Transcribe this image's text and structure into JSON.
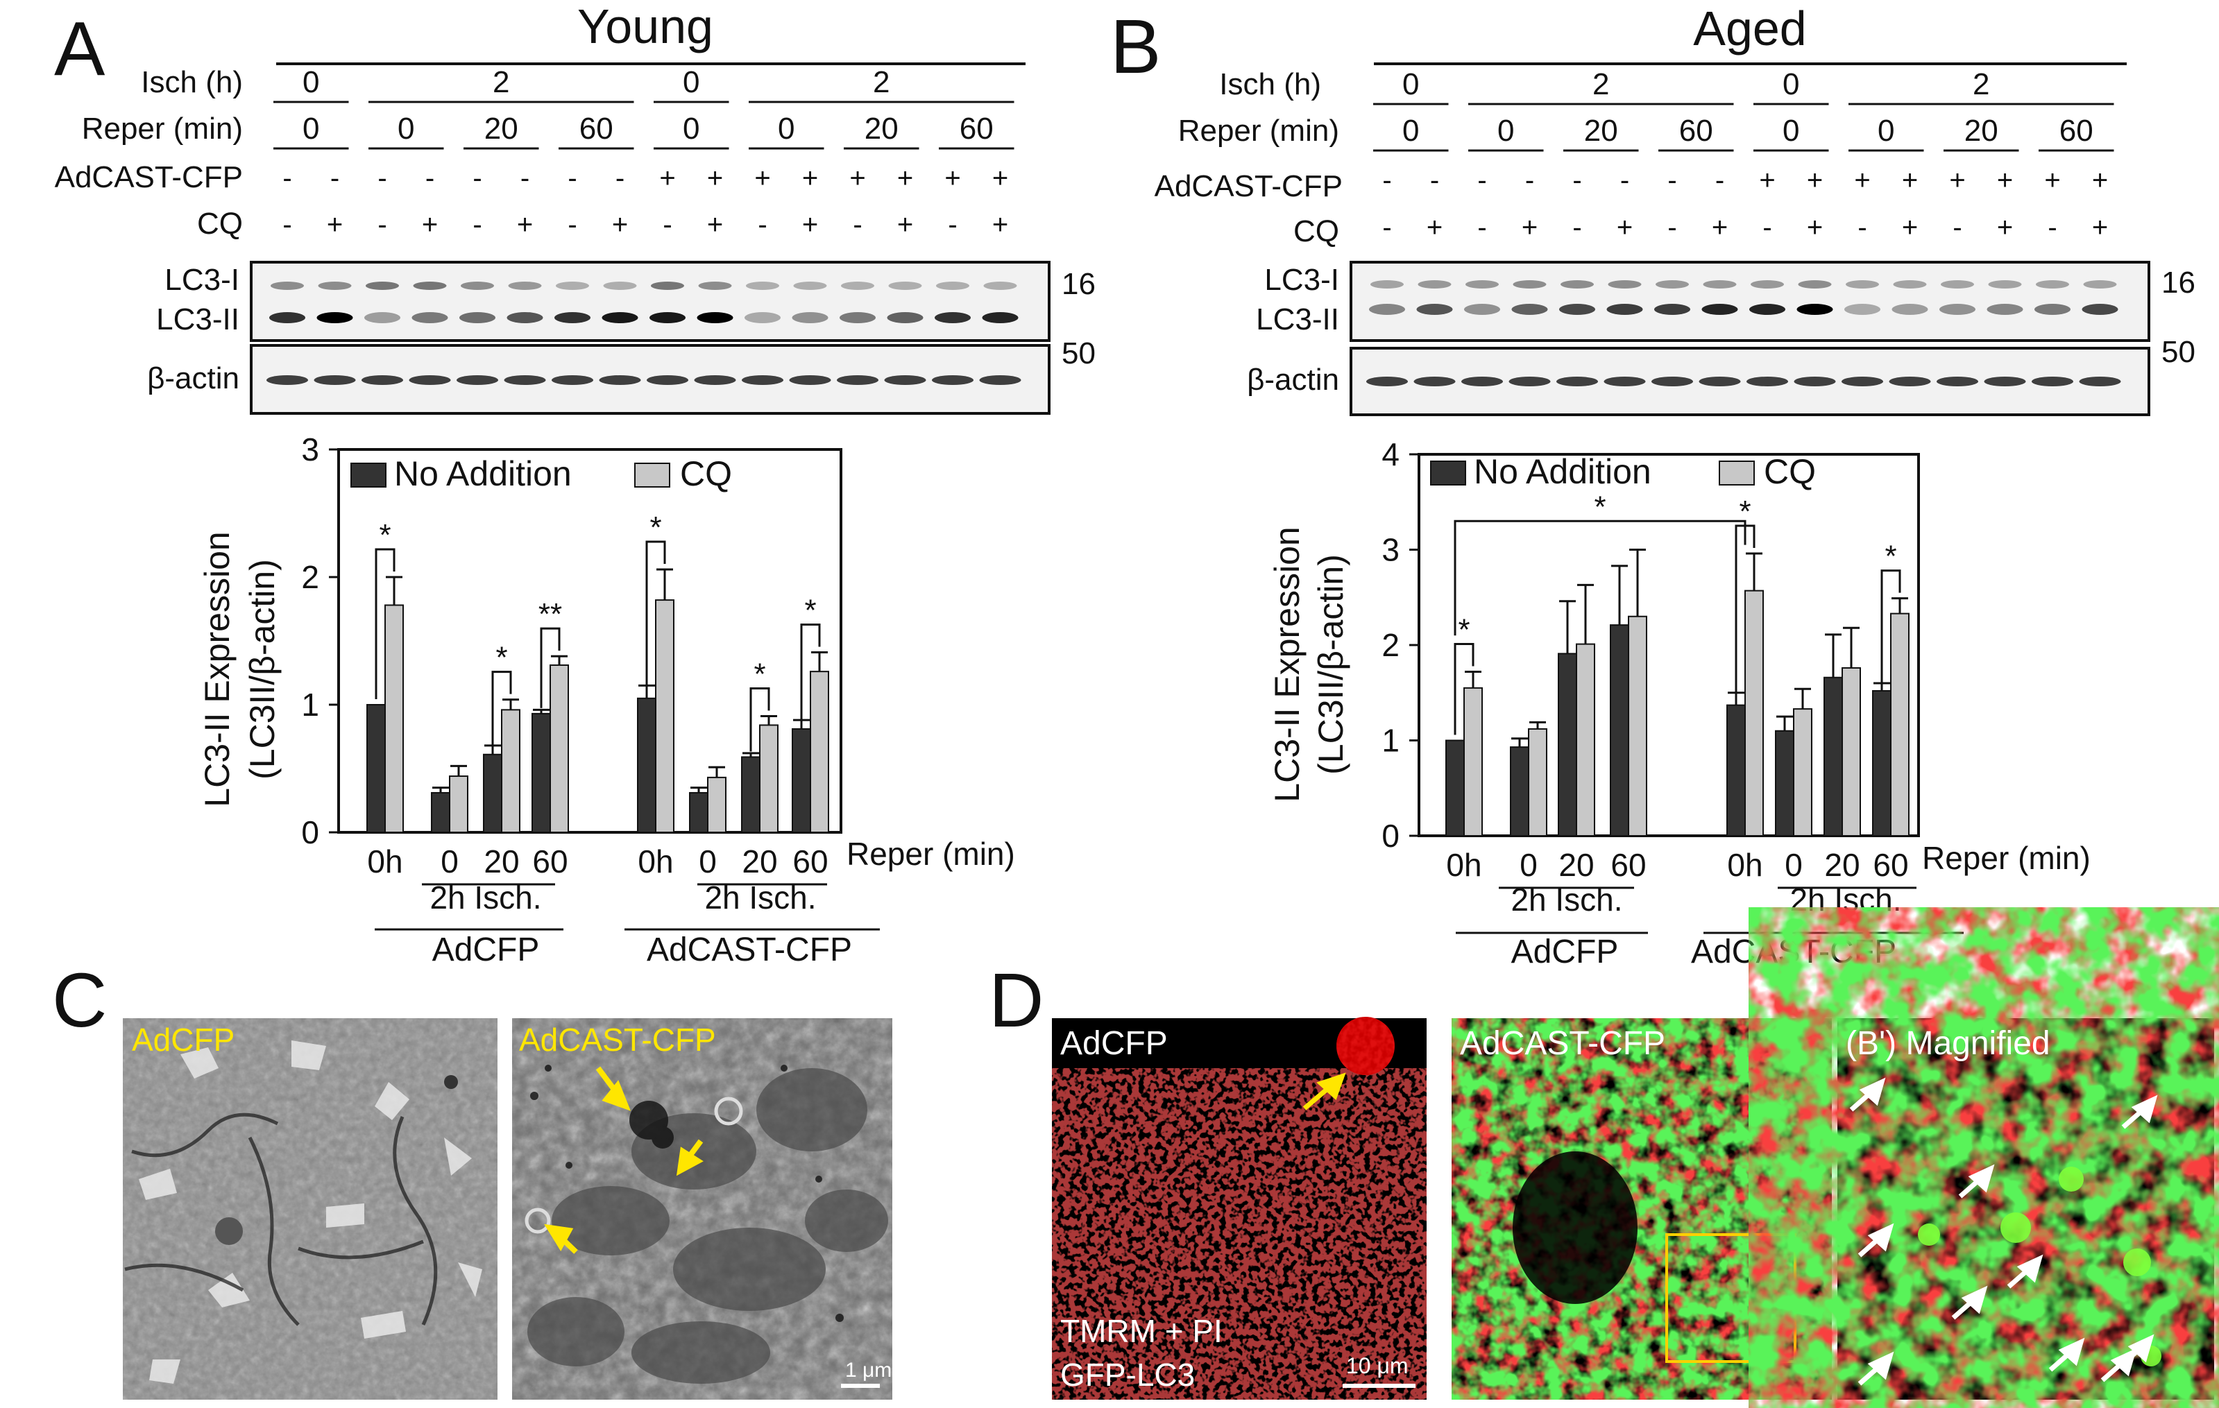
{
  "panels": {
    "A": {
      "letter": "A",
      "title": "Young",
      "header": {
        "isch_label": "Isch (h)",
        "reper_label": "Reper (min)",
        "adcast_label": "AdCAST-CFP",
        "cq_label": "CQ",
        "isch_groups": [
          "0",
          "2",
          "0",
          "2"
        ],
        "reper_groups": [
          "0",
          "0",
          "20",
          "60",
          "0",
          "0",
          "20",
          "60"
        ],
        "adcast_signs": [
          "-",
          "-",
          "-",
          "-",
          "-",
          "-",
          "-",
          "-",
          "+",
          "+",
          "+",
          "+",
          "+",
          "+",
          "+",
          "+"
        ],
        "cq_signs": [
          "-",
          "+",
          "-",
          "+",
          "-",
          "+",
          "-",
          "+",
          "-",
          "+",
          "-",
          "+",
          "-",
          "+",
          "-",
          "+"
        ]
      },
      "blot": {
        "lc3i": "LC3-I",
        "lc3ii": "LC3-II",
        "actin": "β-actin",
        "mw_top": "16",
        "mw_bottom": "50"
      },
      "xaxis": {
        "ticks": [
          "0h",
          "0",
          "20",
          "60",
          "0h",
          "0",
          "20",
          "60"
        ],
        "reper_label": "Reper (min)",
        "isch_label": "2h Isch.",
        "group_labels": [
          "AdCFP",
          "AdCAST-CFP"
        ]
      }
    },
    "B": {
      "letter": "B",
      "title": "Aged",
      "header": {
        "isch_label": "Isch (h)",
        "reper_label": "Reper (min)",
        "adcast_label": "AdCAST-CFP",
        "cq_label": "CQ",
        "isch_groups": [
          "0",
          "2",
          "0",
          "2"
        ],
        "reper_groups": [
          "0",
          "0",
          "20",
          "60",
          "0",
          "0",
          "20",
          "60"
        ],
        "adcast_signs": [
          "-",
          "-",
          "-",
          "-",
          "-",
          "-",
          "-",
          "-",
          "+",
          "+",
          "+",
          "+",
          "+",
          "+",
          "+",
          "+"
        ],
        "cq_signs": [
          "-",
          "+",
          "-",
          "+",
          "-",
          "+",
          "-",
          "+",
          "-",
          "+",
          "-",
          "+",
          "-",
          "+",
          "-",
          "+"
        ]
      },
      "blot": {
        "lc3i": "LC3-I",
        "lc3ii": "LC3-II",
        "actin": "β-actin",
        "mw_top": "16",
        "mw_bottom": "50"
      },
      "xaxis": {
        "ticks": [
          "0h",
          "0",
          "20",
          "60",
          "0h",
          "0",
          "20",
          "60"
        ],
        "reper_label": "Reper (min)",
        "isch_label": "2h Isch.",
        "group_labels": [
          "AdCFP",
          "AdCAST-CFP"
        ]
      }
    },
    "C": {
      "letter": "C",
      "image_labels": [
        "AdCFP",
        "AdCAST-CFP"
      ],
      "scale": "1 μm"
    },
    "D": {
      "letter": "D",
      "image_labels": [
        "AdCFP",
        "AdCAST-CFP",
        "(B') Magnified"
      ],
      "stain_line1": "TMRM + PI",
      "stain_line2": "GFP-LC3",
      "scale": "10 μm"
    }
  },
  "chart_data": [
    {
      "type": "bar",
      "panel": "A",
      "ylabel_line1": "LC3-II Expression",
      "ylabel_line2": "(LC3II/β-actin)",
      "ylim": [
        0,
        3
      ],
      "yticks": [
        "0",
        "1",
        "2",
        "3"
      ],
      "legend": [
        "No Addition",
        "CQ"
      ],
      "categories": [
        "0h",
        "0",
        "20",
        "60",
        "0h",
        "0",
        "20",
        "60"
      ],
      "series": [
        {
          "name": "No Addition",
          "values": [
            1.0,
            0.31,
            0.61,
            0.93,
            1.05,
            0.31,
            0.59,
            0.81
          ],
          "errors": [
            0.0,
            0.04,
            0.07,
            0.03,
            0.1,
            0.04,
            0.03,
            0.07
          ]
        },
        {
          "name": "CQ",
          "values": [
            1.78,
            0.44,
            0.96,
            1.31,
            1.82,
            0.43,
            0.84,
            1.26
          ],
          "errors": [
            0.22,
            0.08,
            0.08,
            0.07,
            0.24,
            0.08,
            0.07,
            0.15
          ]
        }
      ],
      "significance": [
        "*",
        "*",
        "**",
        "*",
        "*",
        "*"
      ]
    },
    {
      "type": "bar",
      "panel": "B",
      "ylabel_line1": "LC3-II Expression",
      "ylabel_line2": "(LC3II/β-actin)",
      "ylim": [
        0,
        4
      ],
      "yticks": [
        "0",
        "1",
        "2",
        "3",
        "4"
      ],
      "legend": [
        "No Addition",
        "CQ"
      ],
      "categories": [
        "0h",
        "0",
        "20",
        "60",
        "0h",
        "0",
        "20",
        "60"
      ],
      "series": [
        {
          "name": "No Addition",
          "values": [
            1.0,
            0.93,
            1.91,
            2.21,
            1.37,
            1.1,
            1.66,
            1.52
          ],
          "errors": [
            0.0,
            0.09,
            0.55,
            0.62,
            0.13,
            0.15,
            0.45,
            0.08
          ]
        },
        {
          "name": "CQ",
          "values": [
            1.55,
            1.12,
            2.01,
            2.3,
            2.57,
            1.33,
            1.76,
            2.33
          ],
          "errors": [
            0.17,
            0.07,
            0.62,
            0.7,
            0.39,
            0.21,
            0.42,
            0.16
          ]
        }
      ],
      "significance": [
        "*",
        "*",
        "*",
        "*"
      ]
    }
  ]
}
